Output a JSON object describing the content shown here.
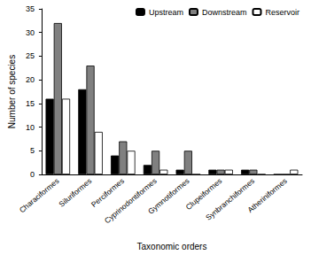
{
  "chart_data": {
    "type": "bar",
    "categories": [
      "Characiformes",
      "Siluriformes",
      "Perciformes",
      "Cyprinodontiformes",
      "Gymnotiformes",
      "Clupeiformes",
      "Synbranchiformes",
      "Atheriniformes"
    ],
    "series": [
      {
        "name": "Upstream",
        "color": "#000000",
        "values": [
          16,
          18,
          4,
          2,
          1,
          1,
          1,
          0
        ]
      },
      {
        "name": "Downstream",
        "color": "#808080",
        "values": [
          32,
          23,
          7,
          5,
          5,
          1,
          1,
          0
        ]
      },
      {
        "name": "Reservoir",
        "color": "#ffffff",
        "values": [
          16,
          9,
          5,
          1,
          0,
          1,
          0,
          1
        ]
      }
    ],
    "x_label": "Taxonomic orders",
    "y_label": "Number of species",
    "ylim": [
      0,
      35
    ],
    "yticks": [
      0,
      5,
      10,
      15,
      20,
      25,
      30,
      35
    ],
    "grid": false,
    "legend": "upper right"
  }
}
